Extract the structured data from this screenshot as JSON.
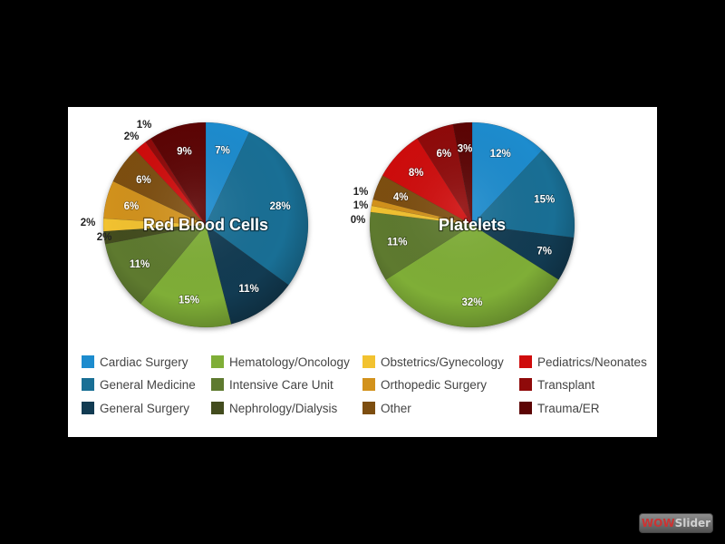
{
  "colors": {
    "Cardiac Surgery": "#1d8cce",
    "General Medicine": "#196f95",
    "General Surgery": "#123b52",
    "Hematology/Oncology": "#7fae37",
    "Intensive Care Unit": "#5e7a2f",
    "Nephrology/Dialysis": "#434c1e",
    "Obstetrics/Gynecology": "#f2c230",
    "Orthopedic Surgery": "#d2921c",
    "Other": "#7d4e10",
    "Pediatrics/Neonates": "#cf0c0c",
    "Transplant": "#8f0a0a",
    "Trauma/ER": "#5c0404"
  },
  "legend": {
    "items": [
      "Cardiac Surgery",
      "Hematology/Oncology",
      "Obstetrics/Gynecology",
      "Pediatrics/Neonates",
      "General Medicine",
      "Intensive Care Unit",
      "Orthopedic Surgery",
      "Transplant",
      "General Surgery",
      "Nephrology/Dialysis",
      "Other",
      "Trauma/ER"
    ]
  },
  "watermark": {
    "prefix": "WOW",
    "suffix": "Slider"
  },
  "chart_data": [
    {
      "type": "pie",
      "title": "Red Blood Cells",
      "slices": [
        {
          "label": "Cardiac Surgery",
          "value": 7
        },
        {
          "label": "General Medicine",
          "value": 28
        },
        {
          "label": "General Surgery",
          "value": 11
        },
        {
          "label": "Hematology/Oncology",
          "value": 15
        },
        {
          "label": "Intensive Care Unit",
          "value": 11
        },
        {
          "label": "Nephrology/Dialysis",
          "value": 2
        },
        {
          "label": "Obstetrics/Gynecology",
          "value": 2
        },
        {
          "label": "Orthopedic Surgery",
          "value": 6
        },
        {
          "label": "Other",
          "value": 6
        },
        {
          "label": "Pediatrics/Neonates",
          "value": 2
        },
        {
          "label": "Transplant",
          "value": 1
        },
        {
          "label": "Trauma/ER",
          "value": 9
        }
      ]
    },
    {
      "type": "pie",
      "title": "Platelets",
      "slices": [
        {
          "label": "Cardiac Surgery",
          "value": 12
        },
        {
          "label": "General Medicine",
          "value": 15
        },
        {
          "label": "General Surgery",
          "value": 7
        },
        {
          "label": "Hematology/Oncology",
          "value": 32
        },
        {
          "label": "Intensive Care Unit",
          "value": 11
        },
        {
          "label": "Nephrology/Dialysis",
          "value": 0
        },
        {
          "label": "Obstetrics/Gynecology",
          "value": 1
        },
        {
          "label": "Orthopedic Surgery",
          "value": 1
        },
        {
          "label": "Other",
          "value": 4
        },
        {
          "label": "Pediatrics/Neonates",
          "value": 8
        },
        {
          "label": "Transplant",
          "value": 6
        },
        {
          "label": "Trauma/ER",
          "value": 3
        }
      ]
    }
  ]
}
